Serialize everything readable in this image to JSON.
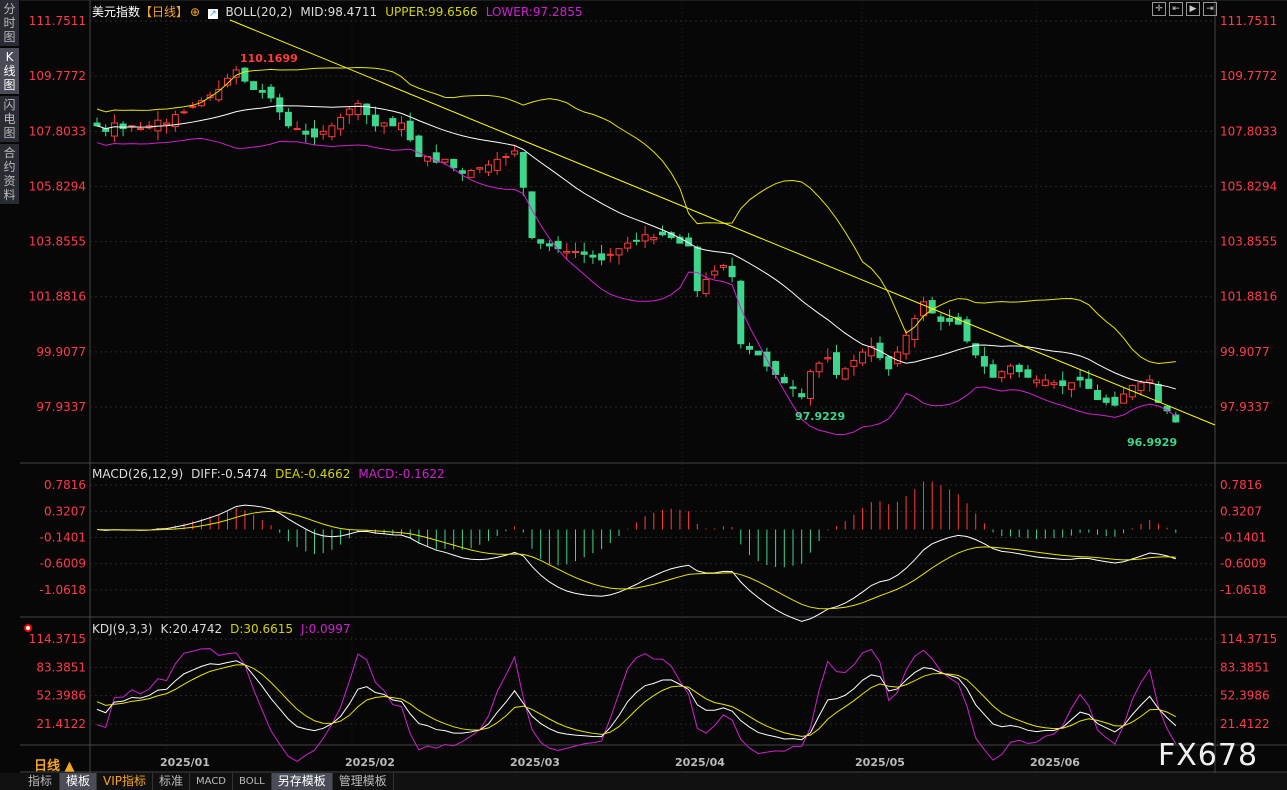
{
  "sidebar": {
    "items": [
      {
        "label": "分时图"
      },
      {
        "label": "K线图",
        "active": true
      },
      {
        "label": "闪电图"
      },
      {
        "label": "合约资料"
      }
    ]
  },
  "header": {
    "symbol": "美元指数",
    "period_tag": "【日线】",
    "boll": "BOLL(20,2)",
    "mid": "MID:98.4711",
    "upper": "UPPER:99.6566",
    "lower": "LOWER:97.2855"
  },
  "macd_header": {
    "name": "MACD(26,12,9)",
    "diff": "DIFF:-0.5474",
    "dea": "DEA:-0.4662",
    "macd": "MACD:-0.1622"
  },
  "kdj_header": {
    "name": "KDJ(9,3,3)",
    "k": "K:20.4742",
    "d": "D:30.6615",
    "j": "J:0.0997"
  },
  "toolbar": {
    "icons": [
      "crosshair-icon",
      "zoom-fit-icon",
      "play-icon",
      "scroll-right-icon"
    ]
  },
  "period_label": "日线 ▲",
  "bottom_tabs": [
    {
      "label": "指标"
    },
    {
      "label": "模板",
      "selected": true
    },
    {
      "label": "VIP指标",
      "vip": true
    },
    {
      "label": "标准"
    },
    {
      "label": "MACD"
    },
    {
      "label": "BOLL"
    },
    {
      "label": "另存模板",
      "selected": true
    },
    {
      "label": "管理模板"
    }
  ],
  "watermark": "FX678",
  "colors": {
    "up": "#ff3b3b",
    "down": "#3dd68c",
    "axis_text": "#ff3b4e",
    "mid": "#ffffff",
    "upper": "#e6e600",
    "lower": "#d020d0",
    "trendline": "#ffff00"
  },
  "chart_data": [
    {
      "type": "candlestick",
      "title": "美元指数 日线",
      "y_ticks": [
        "111.7511",
        "109.7772",
        "107.8033",
        "105.8294",
        "103.8555",
        "101.8816",
        "99.9077",
        "97.9337"
      ],
      "ylim": [
        97.9337,
        111.7511
      ],
      "x_ticks": [
        "2025/01",
        "2025/02",
        "2025/03",
        "2025/04",
        "2025/05",
        "2025/06"
      ],
      "closes": [
        108.0,
        107.8,
        108.1,
        107.9,
        108.0,
        107.9,
        108.0,
        108.2,
        108.1,
        108.4,
        108.5,
        108.7,
        108.9,
        109.1,
        109.3,
        109.7,
        110.0,
        109.6,
        109.3,
        109.2,
        109.0,
        108.5,
        108.0,
        107.9,
        107.7,
        107.6,
        107.8,
        108.0,
        108.3,
        108.6,
        108.8,
        108.4,
        108.0,
        108.1,
        108.0,
        108.1,
        107.5,
        106.9,
        106.9,
        106.7,
        106.8,
        106.5,
        106.3,
        106.4,
        106.5,
        106.6,
        106.8,
        106.9,
        107.1,
        105.8,
        104.0,
        103.8,
        103.7,
        103.6,
        103.5,
        103.5,
        103.4,
        103.3,
        103.2,
        103.4,
        103.6,
        103.8,
        103.9,
        104.1,
        104.0,
        104.1,
        104.0,
        103.8,
        103.7,
        102.1,
        102.5,
        102.8,
        103.0,
        102.6,
        100.2,
        100.0,
        99.8,
        99.4,
        99.1,
        98.8,
        98.6,
        98.3,
        99.2,
        99.5,
        99.7,
        99.1,
        99.3,
        99.6,
        99.9,
        100.1,
        99.7,
        99.3,
        99.9,
        100.5,
        101.1,
        101.7,
        101.3,
        101.0,
        101.0,
        100.9,
        100.3,
        99.8,
        99.4,
        99.0,
        99.2,
        99.4,
        99.2,
        99.0,
        98.9,
        98.9,
        98.8,
        98.7,
        98.8,
        98.9,
        98.6,
        98.2,
        98.1,
        98.0,
        98.4,
        98.7,
        98.8,
        98.9,
        98.1,
        97.8,
        97.4
      ],
      "annotations": [
        {
          "label": "110.1699",
          "kind": "high"
        },
        {
          "label": "97.9229",
          "kind": "low"
        },
        {
          "label": "96.9929",
          "kind": "low"
        }
      ]
    },
    {
      "type": "line",
      "title": "MACD(26,12,9)",
      "y_ticks": [
        "0.7816",
        "0.3207",
        "-0.1401",
        "-0.6009",
        "-1.0618"
      ],
      "ylim": [
        -1.0618,
        0.7816
      ]
    },
    {
      "type": "line",
      "title": "KDJ(9,3,3)",
      "y_ticks": [
        "114.3715",
        "83.3851",
        "52.3986",
        "21.4122"
      ],
      "ylim": [
        21.4122,
        114.3715
      ]
    }
  ]
}
